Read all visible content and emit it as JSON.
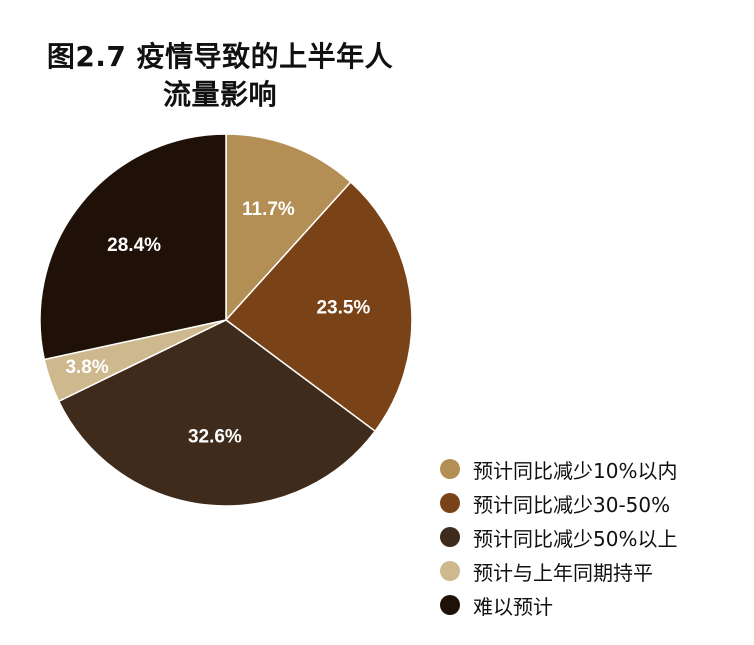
{
  "chart_data": {
    "type": "pie",
    "title_lines": [
      "图2.7 疫情导致的上半年人",
      "流量影响"
    ],
    "legend_position": "bottom-right",
    "slices": [
      {
        "name": "预计同比减少10%以内",
        "value": 11.7,
        "label": "11.7%",
        "color": "#b38e55"
      },
      {
        "name": "预计同比减少30-50%",
        "value": 23.5,
        "label": "23.5%",
        "color": "#7a4317"
      },
      {
        "name": "预计同比减少50%以上",
        "value": 32.6,
        "label": "32.6%",
        "color": "#3e2b1b"
      },
      {
        "name": "预计与上年同期持平",
        "value": 3.8,
        "label": "3.8%",
        "color": "#cdb98d"
      },
      {
        "name": "难以预计",
        "value": 28.4,
        "label": "28.4%",
        "color": "#1f1108"
      }
    ]
  }
}
